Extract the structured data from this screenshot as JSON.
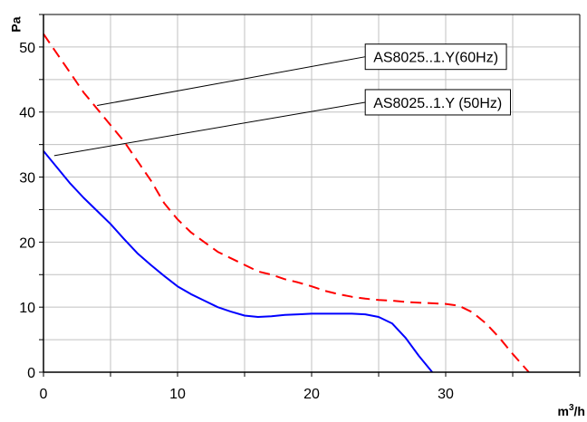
{
  "chart_data": {
    "type": "line",
    "title": "",
    "xlabel": "m³/h",
    "xlabel_main": "m",
    "xlabel_sup": "3",
    "xlabel_tail": "/h",
    "ylabel": "Pa",
    "xlim": [
      0,
      40
    ],
    "ylim": [
      0,
      55
    ],
    "x_ticks": [
      0,
      10,
      20,
      30
    ],
    "x_tick_labels": [
      "0",
      "10",
      "20",
      "30"
    ],
    "x_gridlines": [
      0,
      5,
      10,
      15,
      20,
      25,
      30,
      35,
      40
    ],
    "y_ticks": [
      0,
      10,
      20,
      30,
      40,
      50
    ],
    "y_tick_labels": [
      "0",
      "10",
      "20",
      "30",
      "40",
      "50"
    ],
    "y_gridlines": [
      0,
      5,
      10,
      15,
      20,
      25,
      30,
      35,
      40,
      45,
      50,
      55
    ],
    "grid": true,
    "legend": "callouts",
    "series": [
      {
        "name": "AS8025..1.Y(60Hz)",
        "color": "#ff0000",
        "style": "dashed",
        "x": [
          0,
          1,
          2,
          3,
          4,
          5,
          6,
          7,
          8,
          9,
          10,
          11,
          12,
          13,
          14,
          15,
          16,
          17,
          18,
          19,
          20,
          21,
          22,
          23,
          24,
          25,
          26,
          27,
          28,
          29,
          30,
          31,
          32,
          33,
          34,
          35,
          36.2
        ],
        "y": [
          52,
          49,
          46,
          43,
          40.5,
          38,
          35.5,
          32.5,
          29.5,
          26,
          23.5,
          21.5,
          20,
          18.5,
          17.5,
          16.5,
          15.5,
          15,
          14.3,
          13.8,
          13.2,
          12.5,
          12,
          11.6,
          11.3,
          11.1,
          11,
          10.8,
          10.7,
          10.6,
          10.5,
          10.2,
          9.2,
          7.5,
          5.3,
          2.8,
          0
        ]
      },
      {
        "name": "AS8025..1.Y (50Hz)",
        "color": "#0000ff",
        "style": "solid",
        "x": [
          0,
          1,
          2,
          3,
          4,
          5,
          6,
          7,
          8,
          9,
          10,
          11,
          12,
          13,
          14,
          15,
          16,
          17,
          18,
          19,
          20,
          21,
          22,
          23,
          24,
          25,
          26,
          27,
          28,
          29
        ],
        "y": [
          34,
          31.5,
          29,
          26.8,
          24.8,
          22.8,
          20.5,
          18.3,
          16.5,
          14.8,
          13.2,
          12,
          11,
          10,
          9.3,
          8.7,
          8.5,
          8.6,
          8.8,
          8.9,
          9,
          9,
          9,
          9,
          8.9,
          8.5,
          7.5,
          5.3,
          2.5,
          0
        ]
      }
    ],
    "callouts": [
      {
        "series_index": 0,
        "label": "AS8025..1.Y(60Hz)",
        "point_x": 4,
        "point_y": 41,
        "box_x": 24,
        "box_y": 48.5
      },
      {
        "series_index": 1,
        "label": "AS8025..1.Y (50Hz)",
        "point_x": 0.8,
        "point_y": 33.3,
        "box_x": 24,
        "box_y": 41.5
      }
    ]
  }
}
